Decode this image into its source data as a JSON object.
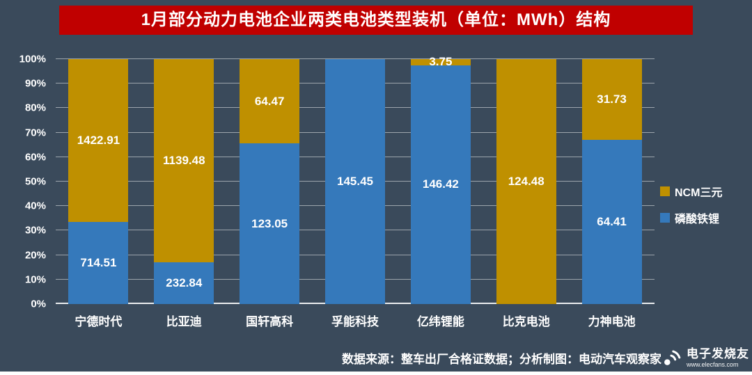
{
  "colors": {
    "background": "#3A4A5B",
    "title_bg": "#C00000",
    "text": "#FFFFFF",
    "gridline": "rgba(255,255,255,0.5)"
  },
  "chart_data": {
    "type": "bar",
    "subtype": "100-percent-stacked-column",
    "title": "1月部分动力电池企业两类电池类型装机（单位：MWh）结构",
    "unit": "MWh",
    "categories": [
      "宁德时代",
      "比亚迪",
      "国轩高科",
      "孚能科技",
      "亿纬锂能",
      "比克电池",
      "力神电池"
    ],
    "series": [
      {
        "name": "磷酸铁锂",
        "color": "#3579BB",
        "stack_position": "bottom",
        "values": [
          714.51,
          232.84,
          123.05,
          145.45,
          146.42,
          0,
          64.41
        ]
      },
      {
        "name": "NCM三元",
        "color": "#BF9000",
        "stack_position": "top",
        "values": [
          1422.91,
          1139.48,
          64.47,
          0,
          3.75,
          124.48,
          31.73
        ]
      }
    ],
    "y_axis": {
      "min": 0,
      "max": 100,
      "tick_labels": [
        "0%",
        "10%",
        "20%",
        "30%",
        "40%",
        "50%",
        "60%",
        "70%",
        "80%",
        "90%",
        "100%"
      ],
      "grid": true
    },
    "legend_position": "right-middle",
    "legend_order": [
      "NCM三元",
      "磷酸铁锂"
    ]
  },
  "footer": {
    "source_note": "数据来源：整车出厂合格证数据；分析制图：电动汽车观察家",
    "watermark_name": "电子发烧友",
    "watermark_url": "www.elecfans.com"
  }
}
